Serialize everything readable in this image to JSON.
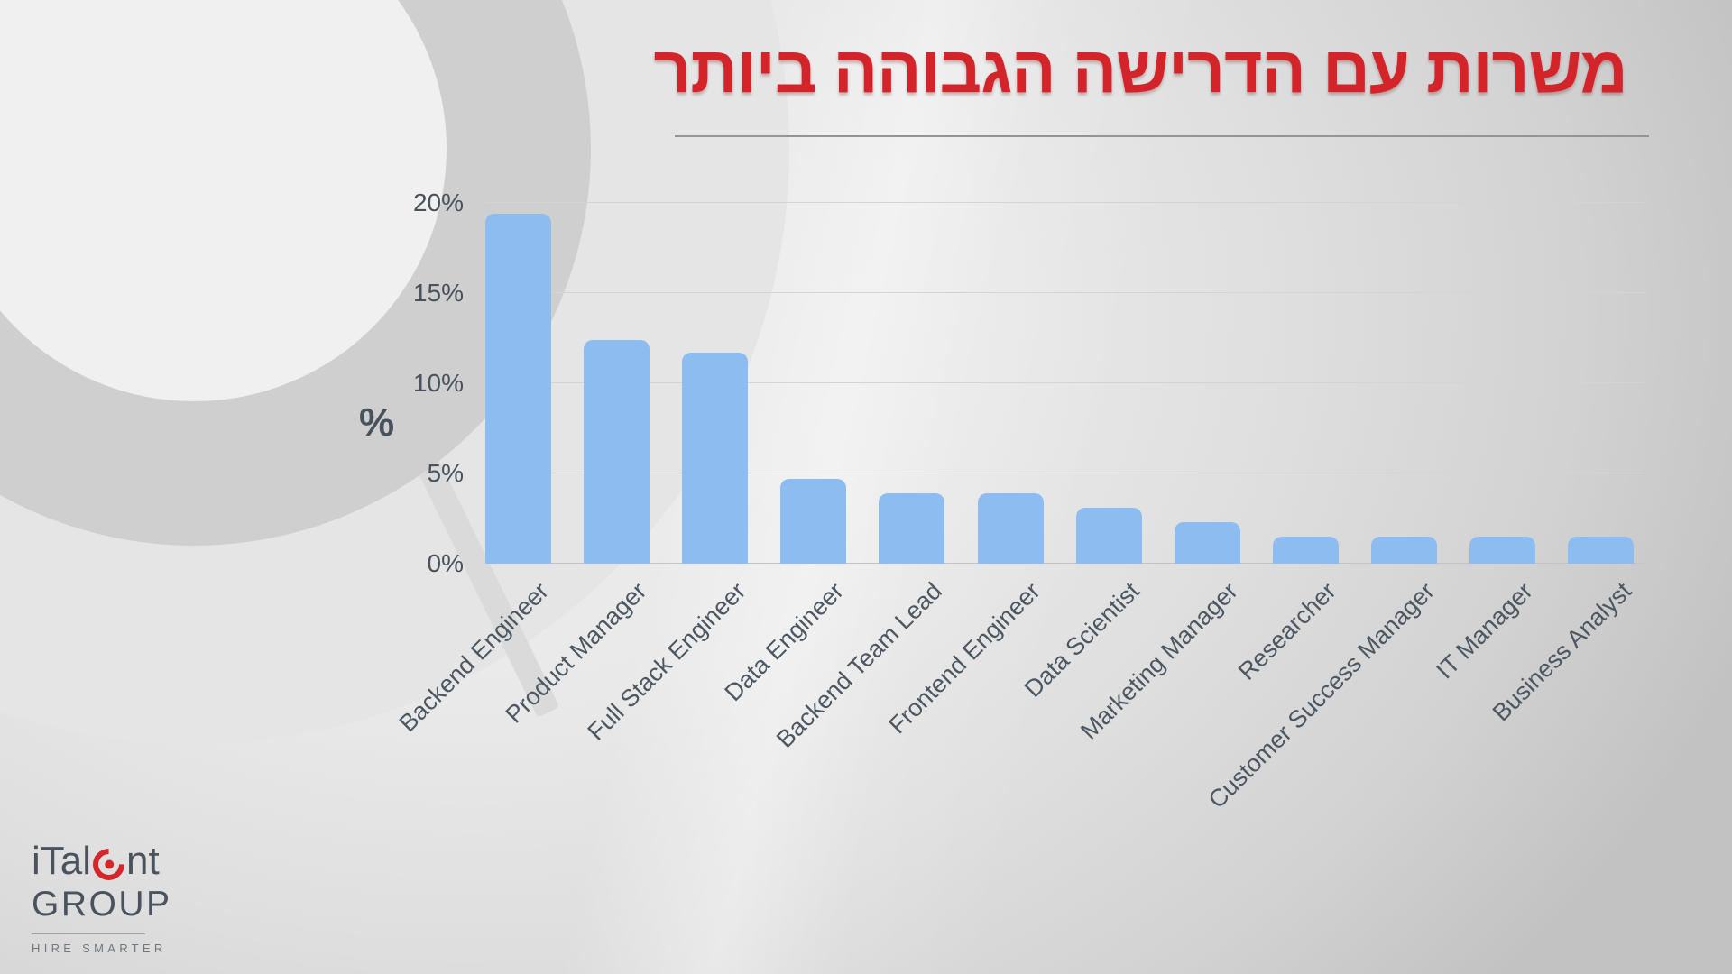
{
  "title": {
    "text": "משרות עם הדרישה הגבוהה ביותר"
  },
  "chart_data": {
    "type": "bar",
    "title": "משרות עם הדרישה הגבוהה ביותר",
    "categories": [
      "Backend Engineer",
      "Product Manager",
      "Full Stack Engineer",
      "Data Engineer",
      "Backend Team Lead",
      "Frontend Engineer",
      "Data Scientist",
      "Marketing Manager",
      "Researcher",
      "Customer Success Manager",
      "IT Manager",
      "Business Analyst"
    ],
    "values": [
      19.4,
      12.4,
      11.7,
      4.7,
      3.9,
      3.9,
      3.1,
      2.3,
      1.5,
      1.5,
      1.5,
      1.5
    ],
    "xlabel": "",
    "ylabel": "%",
    "ylim": [
      0,
      20
    ],
    "ytick_values": [
      0,
      5,
      10,
      15,
      20
    ],
    "ytick_labels": [
      "0%",
      "5%",
      "10%",
      "15%",
      "20%"
    ],
    "grid": true,
    "legend": false,
    "bar_color": "#8cbcf0",
    "label_rotation_deg": 45
  },
  "logo": {
    "brand_part1": "iTal",
    "brand_part2": "nt",
    "line2": "GROUP",
    "tagline": "HIRE SMARTER"
  },
  "colors": {
    "title_red": "#d3242a",
    "bar_blue": "#8cbcf0",
    "axis_text": "#47525c",
    "watermark_gray": "#cfcfcf"
  }
}
